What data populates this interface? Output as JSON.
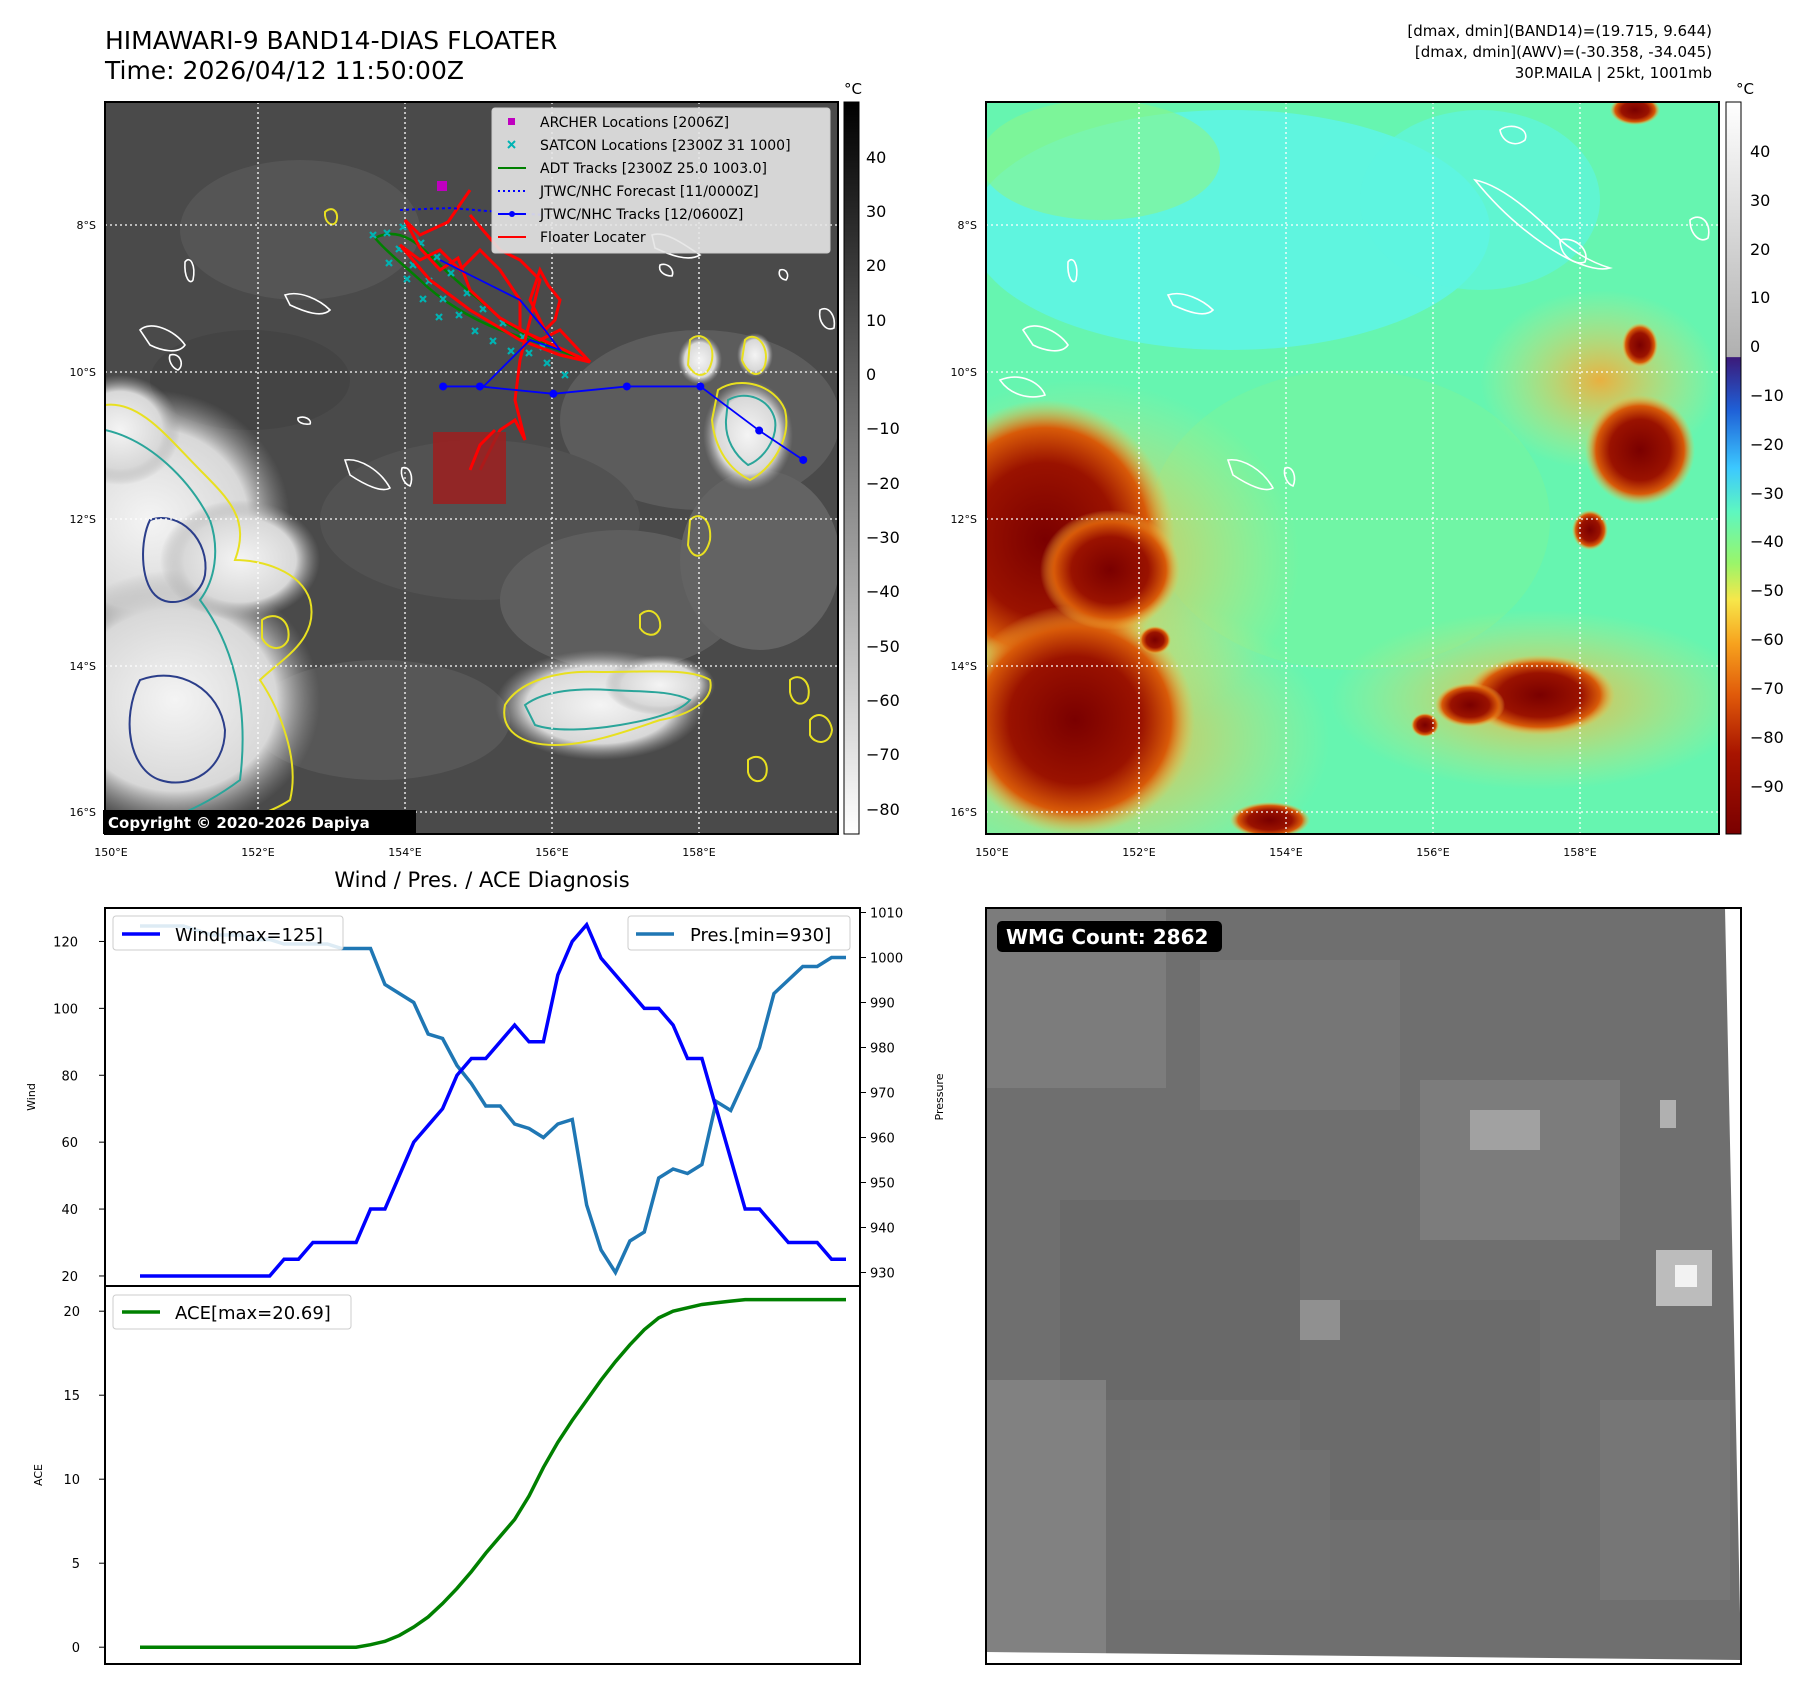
{
  "header": {
    "title": "HIMAWARI-9 BAND14-DIAS FLOATER",
    "time": "Time: 2026/04/12 11:50:00Z",
    "stats": [
      "[dmax, dmin](BAND14)=(19.715, 9.644)",
      "[dmax, dmin](AWV)=(-30.358, -34.045)",
      "30P.MAILA | 25kt, 1001mb"
    ]
  },
  "colors": {
    "wind": "#0000ff",
    "pressure": "#1f77b4",
    "ace": "#008000",
    "archer": "#bf00bf",
    "satcon": "#00b3b3",
    "adt": "#008000",
    "jtwc_forecast": "#0000ff",
    "jtwc_tracks": "#0000ff",
    "floater": "#ff0000"
  },
  "maps": {
    "lon_ticks": [
      "150°E",
      "152°E",
      "154°E",
      "156°E",
      "158°E"
    ],
    "lat_ticks": [
      "8°S",
      "10°S",
      "12°S",
      "14°S",
      "16°S"
    ],
    "copyright": "Copyright © 2020-2026 Dapiya",
    "band14_colorbar": {
      "unit": "°C",
      "ticks": [
        "40",
        "30",
        "20",
        "10",
        "0",
        "−10",
        "−20",
        "−30",
        "−40",
        "−50",
        "−60",
        "−70",
        "−80"
      ]
    },
    "awv_colorbar": {
      "unit": "°C",
      "ticks": [
        "40",
        "30",
        "20",
        "10",
        "0",
        "−10",
        "−20",
        "−30",
        "−40",
        "−50",
        "−60",
        "−70",
        "−80",
        "−90"
      ]
    },
    "legend": [
      {
        "label": "ARCHER Locations [2006Z]",
        "icon": "square-marker-icon"
      },
      {
        "label": "SATCON Locations [2300Z 31 1000]",
        "icon": "x-marker-icon"
      },
      {
        "label": "ADT Tracks [2300Z 25.0 1003.0]",
        "icon": "line-icon"
      },
      {
        "label": "JTWC/NHC Forecast [11/0000Z]",
        "icon": "dotted-line-icon"
      },
      {
        "label": "JTWC/NHC Tracks [12/0600Z]",
        "icon": "dot-line-icon"
      },
      {
        "label": "Floater Locater",
        "icon": "line-icon"
      }
    ],
    "jtwc_track": [
      [
        159.4,
        -11.2
      ],
      [
        158.8,
        -10.8
      ],
      [
        158.0,
        -10.2
      ],
      [
        157.0,
        -10.2
      ],
      [
        156.0,
        -10.3
      ],
      [
        155.0,
        -10.2
      ],
      [
        154.5,
        -10.2
      ]
    ],
    "wmg_label": "WMG Count: 2862"
  },
  "chart_data": [
    {
      "type": "line",
      "title": "Wind / Pres. / ACE Diagnosis",
      "xlabel": "",
      "ylabel": "Wind",
      "y2label": "Pressure",
      "ylim": [
        17,
        130
      ],
      "y2lim": [
        927,
        1011
      ],
      "yticks": [
        20,
        40,
        60,
        80,
        100,
        120
      ],
      "y2ticks": [
        930,
        940,
        950,
        960,
        970,
        980,
        990,
        1000,
        1010
      ],
      "series": [
        {
          "name": "Wind[max=125]",
          "axis": "left",
          "values": [
            20,
            20,
            20,
            20,
            20,
            20,
            20,
            20,
            20,
            20,
            25,
            25,
            30,
            30,
            30,
            30,
            40,
            40,
            50,
            60,
            65,
            70,
            80,
            85,
            85,
            90,
            95,
            90,
            90,
            110,
            120,
            125,
            115,
            110,
            105,
            100,
            100,
            95,
            85,
            85,
            70,
            55,
            40,
            40,
            35,
            30,
            30,
            30,
            25,
            25
          ]
        },
        {
          "name": "Pres.[min=930]",
          "axis": "right",
          "values": [
            1007,
            1007,
            1007,
            1007,
            1006,
            1005,
            1005,
            1005,
            1004,
            1004,
            1003,
            1003,
            1003,
            1003,
            1002,
            1002,
            1002,
            994,
            992,
            990,
            983,
            982,
            976,
            972,
            967,
            967,
            963,
            962,
            960,
            963,
            964,
            945,
            935,
            930,
            937,
            939,
            951,
            953,
            952,
            954,
            968,
            966,
            973,
            980,
            992,
            995,
            998,
            998,
            1000,
            1000
          ]
        }
      ]
    },
    {
      "type": "line",
      "xlabel": "",
      "ylabel": "ACE",
      "ylim": [
        -1,
        21.5
      ],
      "yticks": [
        0,
        5,
        10,
        15,
        20
      ],
      "series": [
        {
          "name": "ACE[max=20.69]",
          "values": [
            0,
            0,
            0,
            0,
            0,
            0,
            0,
            0,
            0,
            0,
            0,
            0,
            0,
            0,
            0,
            0,
            0.15,
            0.35,
            0.7,
            1.2,
            1.8,
            2.6,
            3.5,
            4.5,
            5.6,
            6.6,
            7.6,
            9.0,
            10.7,
            12.2,
            13.5,
            14.7,
            15.9,
            17.0,
            18.0,
            18.9,
            19.6,
            20.0,
            20.2,
            20.4,
            20.5,
            20.6,
            20.69,
            20.69,
            20.69,
            20.69,
            20.69,
            20.69,
            20.69,
            20.69
          ]
        }
      ]
    }
  ]
}
